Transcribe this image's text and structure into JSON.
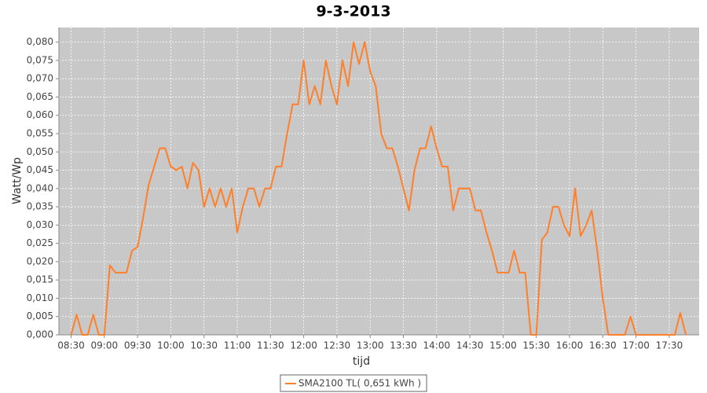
{
  "chart_data": {
    "type": "line",
    "title": "9-3-2013",
    "x_label": "tijd",
    "y_label": "Watt/Wp",
    "x": [
      "08:30",
      "08:35",
      "08:40",
      "08:45",
      "08:50",
      "08:55",
      "09:00",
      "09:05",
      "09:10",
      "09:15",
      "09:20",
      "09:25",
      "09:30",
      "09:35",
      "09:40",
      "09:45",
      "09:50",
      "09:55",
      "10:00",
      "10:05",
      "10:10",
      "10:15",
      "10:20",
      "10:25",
      "10:30",
      "10:35",
      "10:40",
      "10:45",
      "10:50",
      "10:55",
      "11:00",
      "11:05",
      "11:10",
      "11:15",
      "11:20",
      "11:25",
      "11:30",
      "11:35",
      "11:40",
      "11:45",
      "11:50",
      "11:55",
      "12:00",
      "12:05",
      "12:10",
      "12:15",
      "12:20",
      "12:25",
      "12:30",
      "12:35",
      "12:40",
      "12:45",
      "12:50",
      "12:55",
      "13:00",
      "13:05",
      "13:10",
      "13:15",
      "13:20",
      "13:25",
      "13:30",
      "13:35",
      "13:40",
      "13:45",
      "13:50",
      "13:55",
      "14:00",
      "14:05",
      "14:10",
      "14:15",
      "14:20",
      "14:25",
      "14:30",
      "14:35",
      "14:40",
      "14:45",
      "14:50",
      "14:55",
      "15:00",
      "15:05",
      "15:10",
      "15:15",
      "15:20",
      "15:25",
      "15:30",
      "15:35",
      "15:40",
      "15:45",
      "15:50",
      "15:55",
      "16:00",
      "16:05",
      "16:10",
      "16:15",
      "16:20",
      "16:25",
      "16:30",
      "16:35",
      "16:40",
      "16:45",
      "16:50",
      "16:55",
      "17:00",
      "17:05",
      "17:10",
      "17:15",
      "17:20",
      "17:25",
      "17:30",
      "17:35",
      "17:40",
      "17:45"
    ],
    "series": [
      {
        "name": "SMA2100 TL( 0,651 kWh )",
        "color": "#ff7f2a",
        "values": [
          0,
          0.0055,
          0,
          0,
          0.0055,
          0,
          0,
          0.019,
          0.017,
          0.017,
          0.017,
          0.023,
          0.024,
          0.032,
          0.041,
          0.046,
          0.051,
          0.051,
          0.046,
          0.045,
          0.046,
          0.04,
          0.047,
          0.045,
          0.035,
          0.04,
          0.035,
          0.04,
          0.035,
          0.04,
          0.028,
          0.035,
          0.04,
          0.04,
          0.035,
          0.04,
          0.04,
          0.046,
          0.046,
          0.055,
          0.063,
          0.063,
          0.075,
          0.063,
          0.068,
          0.063,
          0.075,
          0.068,
          0.063,
          0.075,
          0.068,
          0.08,
          0.074,
          0.08,
          0.072,
          0.068,
          0.055,
          0.051,
          0.051,
          0.046,
          0.04,
          0.034,
          0.045,
          0.051,
          0.051,
          0.057,
          0.051,
          0.046,
          0.046,
          0.034,
          0.04,
          0.04,
          0.04,
          0.034,
          0.034,
          0.028,
          0.023,
          0.017,
          0.017,
          0.017,
          0.023,
          0.017,
          0.017,
          0,
          0,
          0.026,
          0.028,
          0.035,
          0.035,
          0.03,
          0.027,
          0.04,
          0.027,
          0.03,
          0.034,
          0.023,
          0.01,
          0,
          0,
          0,
          0,
          0.005,
          0,
          0,
          0,
          0,
          0,
          0,
          0,
          0,
          0.006,
          0
        ]
      }
    ],
    "xlim": [
      "08:19",
      "17:57"
    ],
    "xticks": [
      "08:30",
      "09:00",
      "09:30",
      "10:00",
      "10:30",
      "11:00",
      "11:30",
      "12:00",
      "12:30",
      "13:00",
      "13:30",
      "14:00",
      "14:30",
      "15:00",
      "15:30",
      "16:00",
      "16:30",
      "17:00",
      "17:30"
    ],
    "ylim": [
      0,
      0.084
    ],
    "yticks": [
      {
        "value": 0,
        "label": "0,000"
      },
      {
        "value": 0.005,
        "label": "0,005"
      },
      {
        "value": 0.01,
        "label": "0,010"
      },
      {
        "value": 0.015,
        "label": "0,015"
      },
      {
        "value": 0.02,
        "label": "0,020"
      },
      {
        "value": 0.025,
        "label": "0,025"
      },
      {
        "value": 0.03,
        "label": "0,030"
      },
      {
        "value": 0.035,
        "label": "0,035"
      },
      {
        "value": 0.04,
        "label": "0,040"
      },
      {
        "value": 0.045,
        "label": "0,045"
      },
      {
        "value": 0.05,
        "label": "0,050"
      },
      {
        "value": 0.055,
        "label": "0,055"
      },
      {
        "value": 0.06,
        "label": "0,060"
      },
      {
        "value": 0.065,
        "label": "0,065"
      },
      {
        "value": 0.07,
        "label": "0,070"
      },
      {
        "value": 0.075,
        "label": "0,075"
      },
      {
        "value": 0.08,
        "label": "0,080"
      }
    ],
    "grid": true,
    "legend": "bottom"
  }
}
